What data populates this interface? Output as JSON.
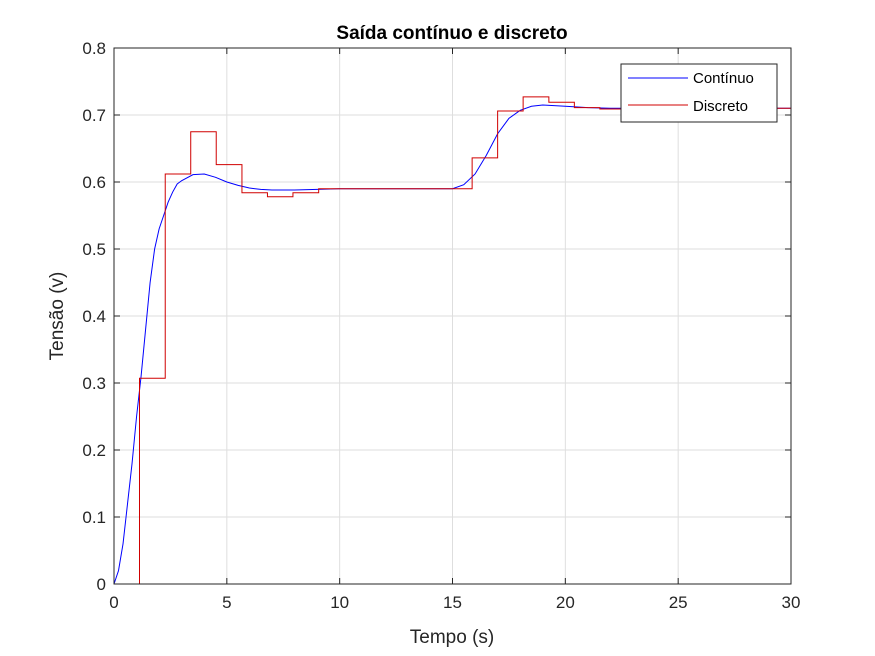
{
  "chart_data": {
    "type": "line",
    "title": "Saída contínuo e discreto",
    "xlabel": "Tempo (s)",
    "ylabel": "Tensão (v)",
    "xlim": [
      0,
      30
    ],
    "ylim": [
      0,
      0.8
    ],
    "xticks": [
      0,
      5,
      10,
      15,
      20,
      25,
      30
    ],
    "yticks": [
      0,
      0.1,
      0.2,
      0.3,
      0.4,
      0.5,
      0.6,
      0.7,
      0.8
    ],
    "xtick_labels": [
      "0",
      "5",
      "10",
      "15",
      "20",
      "25",
      "30"
    ],
    "ytick_labels": [
      "0",
      "0.1",
      "0.2",
      "0.3",
      "0.4",
      "0.5",
      "0.6",
      "0.7",
      "0.8"
    ],
    "grid": true,
    "legend_position": "top-right",
    "series": [
      {
        "name": "Contínuo",
        "style": "line",
        "color": "#0000ff",
        "x": [
          0,
          0.2,
          0.4,
          0.6,
          0.8,
          1.0,
          1.2,
          1.4,
          1.6,
          1.8,
          2.0,
          2.2,
          2.4,
          2.6,
          2.8,
          3.0,
          3.5,
          4.0,
          4.5,
          5.0,
          5.5,
          6.0,
          6.5,
          7.0,
          8.0,
          9.0,
          10.0,
          11.0,
          12.0,
          13.0,
          14.0,
          15.0,
          15.5,
          16.0,
          16.5,
          17.0,
          17.5,
          18.0,
          18.5,
          19.0,
          19.5,
          20.0,
          21.0,
          22.0,
          23.0,
          24.0,
          25.0,
          26.0,
          27.0,
          28.0,
          29.0,
          30.0
        ],
        "y": [
          0,
          0.02,
          0.06,
          0.12,
          0.18,
          0.25,
          0.31,
          0.38,
          0.45,
          0.5,
          0.53,
          0.55,
          0.57,
          0.585,
          0.597,
          0.602,
          0.611,
          0.612,
          0.607,
          0.6,
          0.595,
          0.591,
          0.589,
          0.588,
          0.588,
          0.589,
          0.59,
          0.59,
          0.59,
          0.59,
          0.59,
          0.59,
          0.596,
          0.612,
          0.64,
          0.672,
          0.695,
          0.707,
          0.713,
          0.715,
          0.714,
          0.713,
          0.711,
          0.71,
          0.71,
          0.71,
          0.71,
          0.71,
          0.71,
          0.71,
          0.71,
          0.71
        ]
      },
      {
        "name": "Discreto",
        "style": "step",
        "color": "#d00000",
        "x": [
          0,
          1.13,
          2.27,
          3.4,
          4.53,
          5.67,
          6.8,
          7.93,
          9.07,
          10.2,
          11.33,
          12.47,
          13.6,
          14.73,
          15.87,
          17.0,
          18.13,
          19.27,
          20.4,
          21.53,
          22.67,
          23.8,
          24.93,
          26.07,
          27.2,
          28.33,
          29.47,
          30.0
        ],
        "y": [
          0,
          0.307,
          0.612,
          0.675,
          0.626,
          0.584,
          0.578,
          0.584,
          0.59,
          0.59,
          0.59,
          0.59,
          0.59,
          0.59,
          0.636,
          0.706,
          0.727,
          0.719,
          0.711,
          0.709,
          0.71,
          0.71,
          0.71,
          0.71,
          0.71,
          0.71,
          0.71,
          0.71
        ]
      }
    ]
  }
}
